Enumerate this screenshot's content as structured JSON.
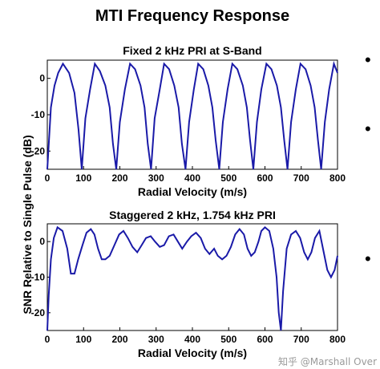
{
  "chart_data": [
    {
      "type": "line",
      "title": "MTI Frequency Response",
      "subtitle": "Fixed 2 kHz PRI at S-Band",
      "xlabel": "Radial Velocity (m/s)",
      "ylabel": "SNR Relative to Single Pulse (dB)",
      "xlim": [
        0,
        800
      ],
      "ylim": [
        -25,
        5
      ],
      "xticks": [
        0,
        100,
        200,
        300,
        400,
        500,
        600,
        700,
        800
      ],
      "yticks": [
        0,
        -10,
        -20
      ],
      "grid": false,
      "series": [
        {
          "color": "#1a1aa8",
          "x": [
            0,
            10,
            20,
            30,
            43,
            60,
            75,
            86,
            95,
            105,
            118,
            131,
            145,
            160,
            172,
            181,
            190,
            200,
            214,
            228,
            242,
            257,
            268,
            277,
            286,
            296,
            310,
            322,
            336,
            350,
            362,
            371,
            381,
            391,
            404,
            416,
            430,
            444,
            455,
            464,
            474,
            484,
            497,
            510,
            524,
            539,
            550,
            559,
            568,
            578,
            590,
            604,
            618,
            633,
            644,
            653,
            662,
            672,
            685,
            698,
            712,
            726,
            737,
            746,
            755,
            765,
            777,
            790,
            800
          ],
          "y": [
            -25,
            -8,
            -2,
            1.5,
            4,
            1.5,
            -4,
            -14,
            -25,
            -11,
            -3,
            4,
            2,
            -2,
            -8,
            -18,
            -25,
            -12,
            -3,
            4,
            2.5,
            -2,
            -8,
            -18,
            -25,
            -11,
            -3,
            4,
            2.5,
            -2,
            -8,
            -18,
            -25,
            -12,
            -3,
            4,
            2.5,
            -2,
            -8,
            -17,
            -25,
            -12,
            -3,
            4,
            2.5,
            -2,
            -8,
            -17,
            -25,
            -12,
            -3,
            4,
            2.5,
            -2,
            -8,
            -17,
            -25,
            -12,
            -3,
            4,
            2.5,
            -2,
            -8,
            -17,
            -25,
            -12,
            -3,
            4,
            1.5
          ]
        }
      ]
    },
    {
      "type": "line",
      "title": "Staggered 2 kHz, 1.754 kHz PRI",
      "xlabel": "Radial Velocity (m/s)",
      "xlim": [
        0,
        800
      ],
      "ylim": [
        -25,
        5
      ],
      "xticks": [
        0,
        100,
        200,
        300,
        400,
        500,
        600,
        700,
        800
      ],
      "yticks": [
        0,
        -10,
        -20
      ],
      "grid": false,
      "series": [
        {
          "color": "#1a1aa8",
          "x": [
            0,
            4,
            10,
            18,
            28,
            42,
            55,
            65,
            75,
            85,
            97,
            108,
            120,
            130,
            140,
            150,
            160,
            172,
            185,
            198,
            210,
            222,
            235,
            248,
            260,
            272,
            285,
            297,
            310,
            322,
            335,
            348,
            360,
            372,
            385,
            397,
            410,
            423,
            435,
            447,
            460,
            470,
            482,
            494,
            506,
            518,
            530,
            542,
            552,
            562,
            572,
            582,
            590,
            600,
            612,
            623,
            632,
            638,
            644,
            650,
            660,
            672,
            685,
            697,
            708,
            718,
            728,
            738,
            750,
            762,
            772,
            782,
            792,
            800
          ],
          "y": [
            -25,
            -15,
            -5,
            1,
            4,
            3,
            -2,
            -9,
            -9,
            -5,
            -1,
            2.5,
            3.5,
            2,
            -2,
            -5,
            -5,
            -4,
            -1,
            2,
            3,
            1,
            -1.5,
            -3,
            -1,
            1,
            1.5,
            0,
            -1.5,
            -1,
            1.5,
            2,
            0,
            -2,
            0,
            1.5,
            2.5,
            1,
            -2,
            -3.5,
            -2,
            -4,
            -5,
            -4,
            -1.5,
            2,
            3.5,
            2,
            -2,
            -4,
            -3,
            0,
            3,
            4,
            3,
            -2,
            -10,
            -20,
            -25,
            -14,
            -2,
            2,
            3,
            1,
            -3,
            -5,
            -3,
            1,
            3,
            -3,
            -8,
            -10,
            -8,
            -4
          ]
        }
      ]
    }
  ],
  "bullets": [
    "•",
    "•",
    "•"
  ],
  "watermark": "知乎 @Marshall Over"
}
